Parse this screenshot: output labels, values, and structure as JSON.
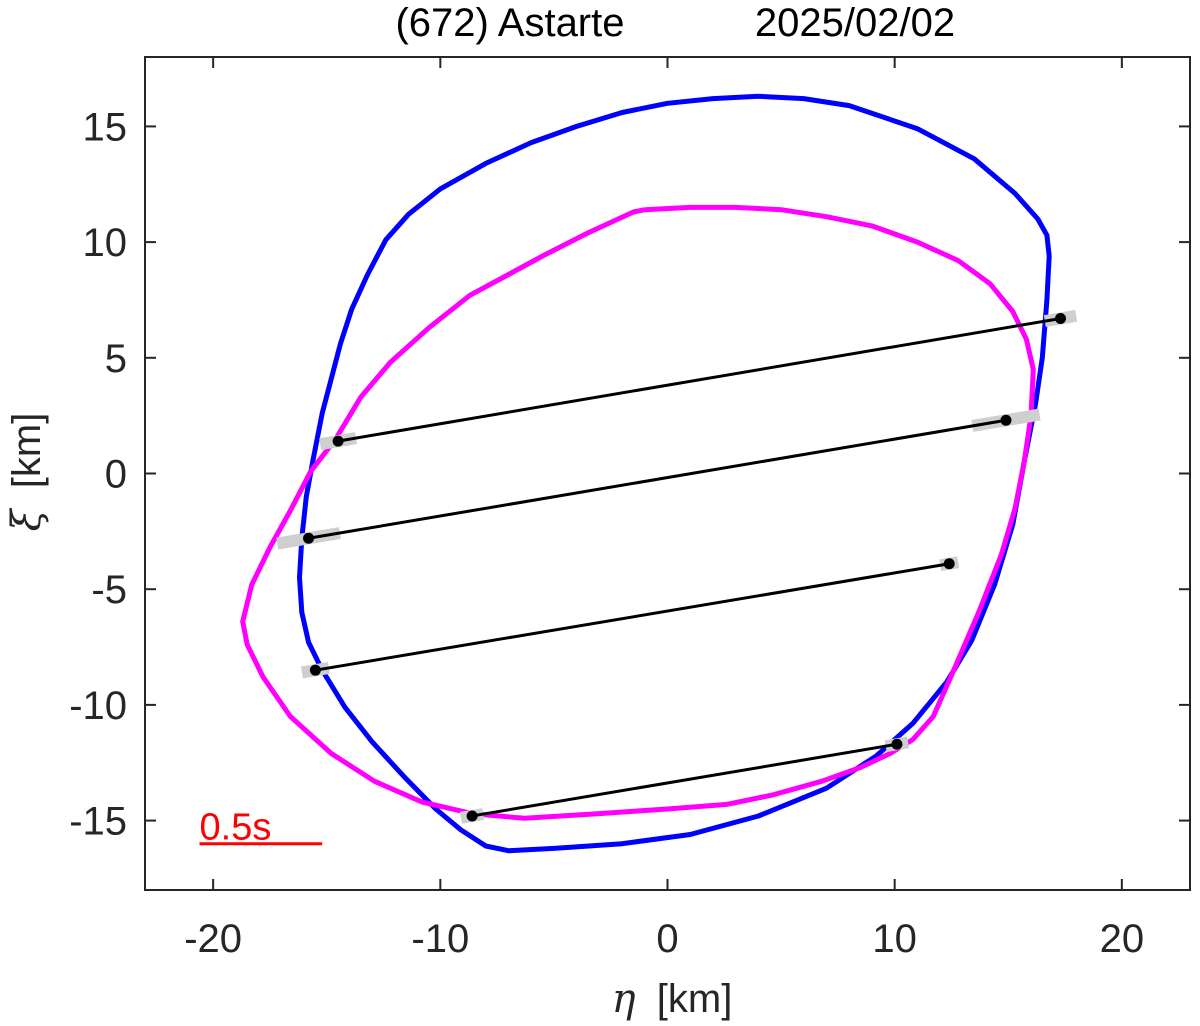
{
  "chart_data": {
    "type": "line",
    "title": "(672) Astarte",
    "date": "2025/02/02",
    "xlabel_symbol": "η",
    "xlabel_unit": "[km]",
    "ylabel_symbol": "ξ",
    "ylabel_unit": "[km]",
    "xlim": [
      -23,
      23
    ],
    "ylim": [
      -18,
      18
    ],
    "xticks": [
      -20,
      -10,
      0,
      10,
      20
    ],
    "yticks": [
      15,
      10,
      5,
      0,
      -5,
      -10,
      -15
    ],
    "grid": false,
    "scale_bar": {
      "label": "0.5s",
      "x": [
        -20.6,
        -15.2
      ],
      "y": -16.0,
      "color": "#ff0000"
    },
    "series": [
      {
        "color": "#0000ff",
        "points": [
          [
            4.0,
            16.3
          ],
          [
            2.0,
            16.2
          ],
          [
            0,
            16.0
          ],
          [
            -2,
            15.6
          ],
          [
            -4,
            15.0
          ],
          [
            -6,
            14.3
          ],
          [
            -8,
            13.4
          ],
          [
            -10,
            12.3
          ],
          [
            -11.4,
            11.2
          ],
          [
            -12.4,
            10.1
          ],
          [
            -13.2,
            8.6
          ],
          [
            -13.9,
            7.1
          ],
          [
            -14.4,
            5.6
          ],
          [
            -14.8,
            4.1
          ],
          [
            -15.2,
            2.6
          ],
          [
            -15.6,
            0.6
          ],
          [
            -15.9,
            -1.0
          ],
          [
            -16.1,
            -2.8
          ],
          [
            -16.2,
            -4.5
          ],
          [
            -16.1,
            -6.0
          ],
          [
            -15.8,
            -7.3
          ],
          [
            -15.2,
            -8.5
          ],
          [
            -14.2,
            -10.1
          ],
          [
            -13.0,
            -11.6
          ],
          [
            -11.6,
            -13.1
          ],
          [
            -10.2,
            -14.5
          ],
          [
            -9.1,
            -15.4
          ],
          [
            -8.0,
            -16.1
          ],
          [
            -7.0,
            -16.3
          ],
          [
            -5.0,
            -16.2
          ],
          [
            -2.0,
            -16.0
          ],
          [
            1.0,
            -15.6
          ],
          [
            4.0,
            -14.8
          ],
          [
            7.0,
            -13.6
          ],
          [
            9.2,
            -12.2
          ],
          [
            10.8,
            -10.8
          ],
          [
            12.3,
            -9.0
          ],
          [
            13.4,
            -7.2
          ],
          [
            14.4,
            -4.8
          ],
          [
            15.2,
            -2.2
          ],
          [
            15.7,
            0.5
          ],
          [
            16.2,
            3.0
          ],
          [
            16.5,
            5.0
          ],
          [
            16.7,
            7.5
          ],
          [
            16.8,
            9.4
          ],
          [
            16.7,
            10.3
          ],
          [
            16.3,
            11.0
          ],
          [
            15.3,
            12.1
          ],
          [
            13.5,
            13.6
          ],
          [
            11.0,
            14.9
          ],
          [
            8.0,
            15.9
          ],
          [
            6.0,
            16.2
          ],
          [
            4.0,
            16.3
          ]
        ]
      },
      {
        "color": "#ff00ff",
        "points": [
          [
            -1.0,
            11.4
          ],
          [
            1.0,
            11.5
          ],
          [
            3.0,
            11.5
          ],
          [
            5.0,
            11.4
          ],
          [
            7.0,
            11.1
          ],
          [
            9.0,
            10.7
          ],
          [
            11.0,
            10.0
          ],
          [
            12.8,
            9.2
          ],
          [
            14.2,
            8.2
          ],
          [
            15.2,
            7.0
          ],
          [
            15.8,
            5.8
          ],
          [
            16.1,
            4.5
          ],
          [
            16.0,
            2.5
          ],
          [
            15.7,
            0.5
          ],
          [
            15.3,
            -1.5
          ],
          [
            14.7,
            -3.5
          ],
          [
            13.7,
            -6.0
          ],
          [
            12.6,
            -8.5
          ],
          [
            11.7,
            -10.5
          ],
          [
            10.8,
            -11.5
          ],
          [
            9.8,
            -12.1
          ],
          [
            8.5,
            -12.7
          ],
          [
            6.8,
            -13.3
          ],
          [
            4.6,
            -13.9
          ],
          [
            2.6,
            -14.3
          ],
          [
            0.0,
            -14.5
          ],
          [
            -3.0,
            -14.7
          ],
          [
            -6.3,
            -14.9
          ],
          [
            -8.6,
            -14.7
          ],
          [
            -10.8,
            -14.2
          ],
          [
            -12.9,
            -13.3
          ],
          [
            -14.8,
            -12.1
          ],
          [
            -16.6,
            -10.5
          ],
          [
            -17.8,
            -8.8
          ],
          [
            -18.5,
            -7.4
          ],
          [
            -18.7,
            -6.4
          ],
          [
            -18.3,
            -4.8
          ],
          [
            -17.5,
            -3.2
          ],
          [
            -16.6,
            -1.6
          ],
          [
            -15.7,
            0.1
          ],
          [
            -14.6,
            1.5
          ],
          [
            -13.5,
            3.3
          ],
          [
            -12.2,
            4.8
          ],
          [
            -10.5,
            6.3
          ],
          [
            -8.7,
            7.7
          ],
          [
            -7.0,
            8.6
          ],
          [
            -5.5,
            9.4
          ],
          [
            -3.5,
            10.4
          ],
          [
            -1.5,
            11.3
          ],
          [
            -1.0,
            11.4
          ]
        ]
      }
    ],
    "chords": [
      {
        "start": [
          -14.5,
          1.4
        ],
        "end": [
          17.3,
          6.7
        ],
        "err_start": 0.8,
        "err_end": 0.7
      },
      {
        "start": [
          -15.8,
          -2.8
        ],
        "end": [
          14.9,
          2.3
        ],
        "err_start": 1.4,
        "err_end": 1.5
      },
      {
        "start": [
          -15.5,
          -8.5
        ],
        "end": [
          12.4,
          -3.9
        ],
        "err_start": 0.6,
        "err_end": 0.4
      },
      {
        "start": [
          -8.6,
          -14.8
        ],
        "end": [
          10.1,
          -11.7
        ],
        "err_start": 0.5,
        "err_end": 0.5
      }
    ]
  }
}
